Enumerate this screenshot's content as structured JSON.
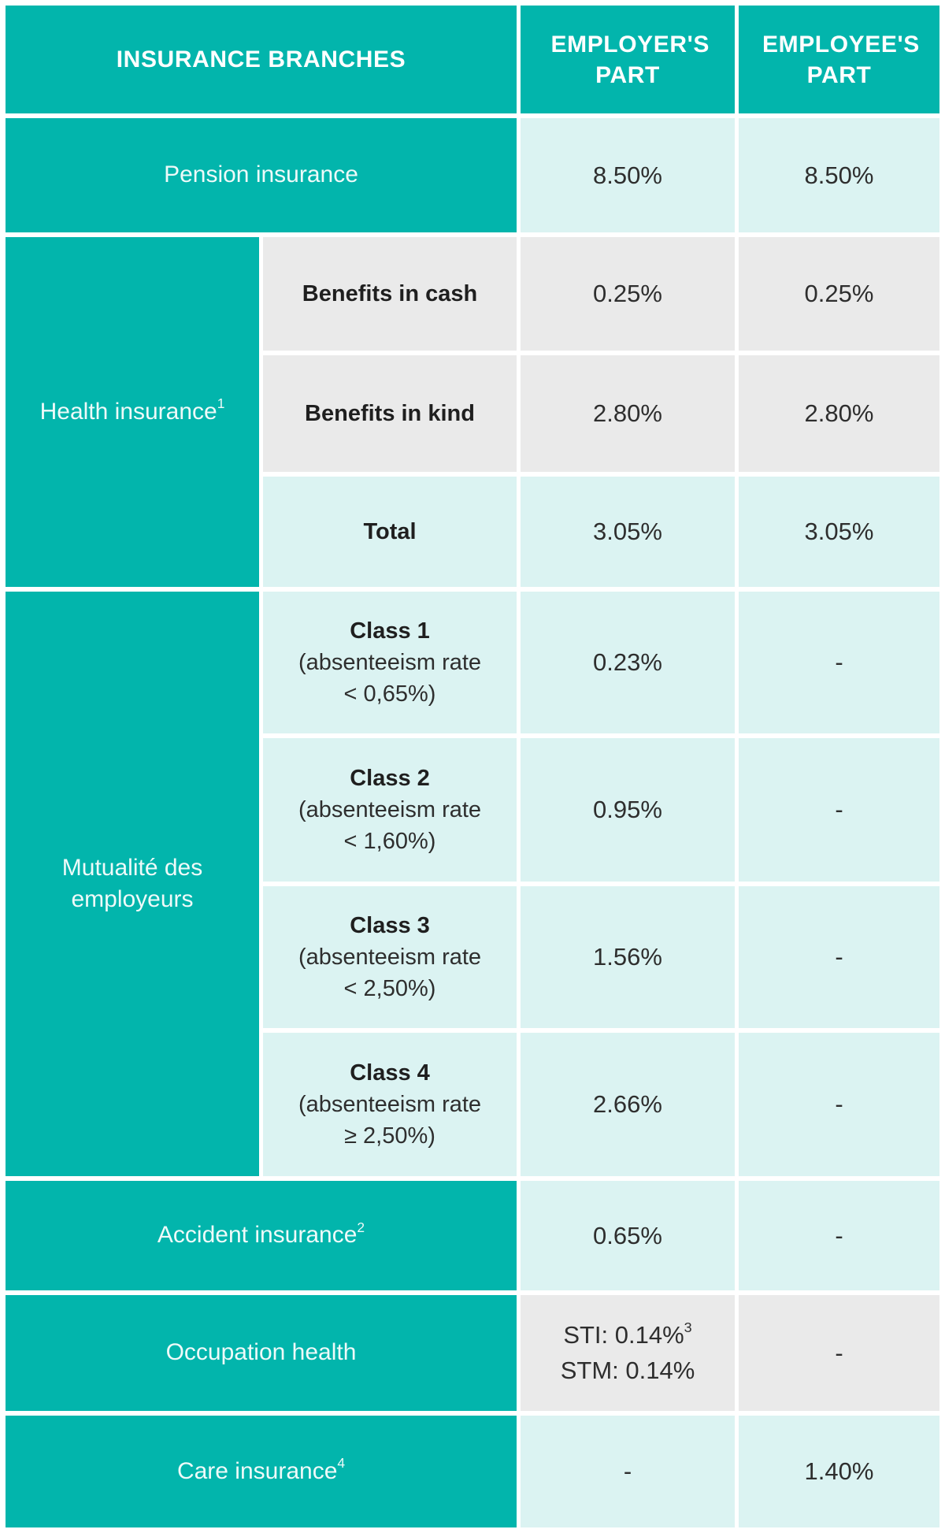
{
  "colors": {
    "accent_teal": "#02b5ac",
    "row_tint_cyan": "#dbf3f2",
    "row_tint_gray": "#eaeaea",
    "header_text": "#ffffff",
    "body_text": "#2e2e2e"
  },
  "chart_data": {
    "type": "table",
    "columns": [
      "INSURANCE BRANCHES",
      "EMPLOYER'S PART",
      "EMPLOYEE'S PART"
    ],
    "groups": [
      {
        "label": "Pension insurance",
        "rows": [
          {
            "employer": "8.50%",
            "employee": "8.50%"
          }
        ]
      },
      {
        "label": "Health insurance",
        "footnote": "1",
        "rows": [
          {
            "sublabel": "Benefits in cash",
            "employer": "0.25%",
            "employee": "0.25%"
          },
          {
            "sublabel": "Benefits in kind",
            "employer": "2.80%",
            "employee": "2.80%"
          },
          {
            "sublabel": "Total",
            "employer": "3.05%",
            "employee": "3.05%"
          }
        ]
      },
      {
        "label": "Mutualité des employeurs",
        "rows": [
          {
            "sublabel": "Class 1",
            "detail_line1": "(absenteeism rate",
            "detail_line2": "< 0,65%)",
            "employer": "0.23%",
            "employee": "-"
          },
          {
            "sublabel": "Class 2",
            "detail_line1": "(absenteeism rate",
            "detail_line2": "< 1,60%)",
            "employer": "0.95%",
            "employee": "-"
          },
          {
            "sublabel": "Class 3",
            "detail_line1": "(absenteeism rate",
            "detail_line2": "< 2,50%)",
            "employer": "1.56%",
            "employee": "-"
          },
          {
            "sublabel": "Class 4",
            "detail_line1": "(absenteeism rate",
            "detail_line2": "≥ 2,50%)",
            "employer": "2.66%",
            "employee": "-"
          }
        ]
      },
      {
        "label": "Accident insurance",
        "footnote": "2",
        "rows": [
          {
            "employer": "0.65%",
            "employee": "-"
          }
        ]
      },
      {
        "label": "Occupation health",
        "rows": [
          {
            "employer_line1": "STI: 0.14%",
            "employer_line1_footnote": "3",
            "employer_line2": "STM: 0.14%",
            "employee": "-"
          }
        ]
      },
      {
        "label": "Care insurance",
        "footnote": "4",
        "rows": [
          {
            "employer": "-",
            "employee": "1.40%"
          }
        ]
      }
    ]
  }
}
